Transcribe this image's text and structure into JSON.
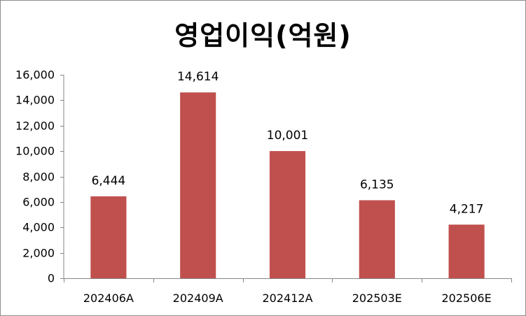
{
  "chart_data": {
    "type": "bar",
    "title": "영업이익(억원)",
    "categories": [
      "202406A",
      "202409A",
      "202412A",
      "202503E",
      "202506E"
    ],
    "series": [
      {
        "values": [
          6444,
          14614,
          10001,
          6135,
          4217
        ]
      }
    ],
    "data_labels": [
      "6,444",
      "14,614",
      "10,001",
      "6,135",
      "4,217"
    ],
    "y_ticks": [
      "0",
      "2,000",
      "4,000",
      "6,000",
      "8,000",
      "10,000",
      "12,000",
      "14,000",
      "16,000"
    ],
    "ylim": [
      0,
      16000
    ],
    "xlabel": "",
    "ylabel": "",
    "grid": false,
    "legend": "none",
    "bar_color": "#c0504d"
  }
}
